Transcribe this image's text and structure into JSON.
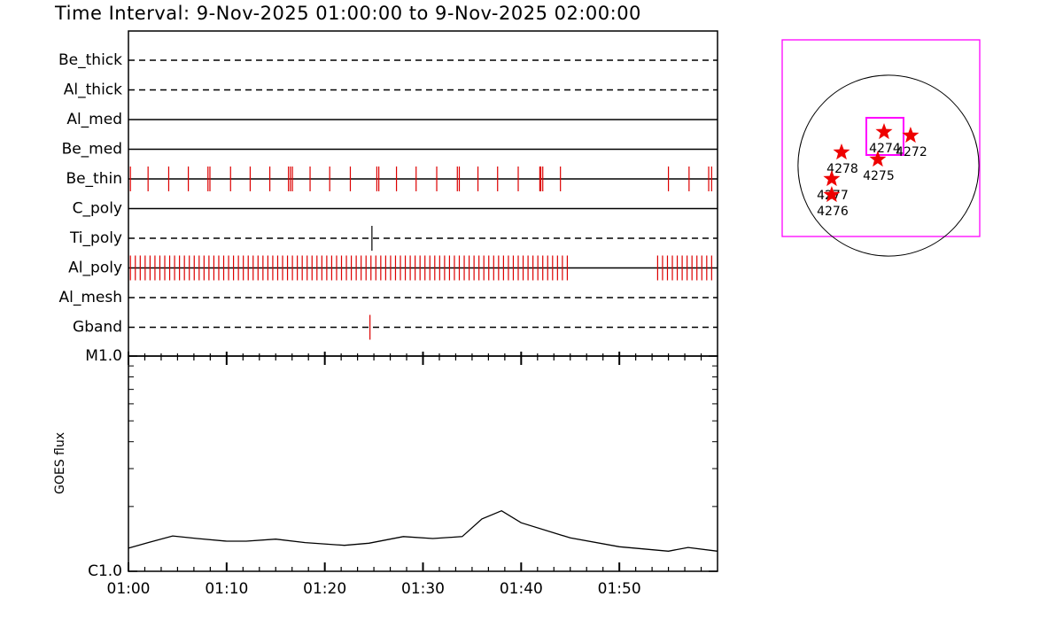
{
  "chart_data": [
    {
      "type": "timeline",
      "title": "Time Interval:  9-Nov-2025 01:00:00 to  9-Nov-2025 02:00:00",
      "xlim": [
        0,
        60
      ],
      "rows": [
        {
          "name": "Be_thick",
          "line": "dashed",
          "color": "#dd0000",
          "times": []
        },
        {
          "name": "Al_thick",
          "line": "dashed",
          "color": "#dd0000",
          "times": []
        },
        {
          "name": "Al_med",
          "line": "solid",
          "color": "#dd0000",
          "times": []
        },
        {
          "name": "Be_med",
          "line": "solid",
          "color": "#dd0000",
          "times": []
        },
        {
          "name": "Be_thin",
          "line": "solid",
          "color": "#dd0000",
          "times": [
            0.2,
            2.0,
            4.1,
            6.1,
            8.1,
            8.3,
            10.4,
            12.4,
            14.4,
            16.3,
            16.5,
            16.7,
            18.5,
            20.5,
            22.6,
            25.3,
            25.5,
            27.3,
            29.3,
            31.4,
            33.5,
            33.7,
            35.6,
            37.6,
            39.7,
            41.9,
            42.0,
            42.2,
            44.0,
            55.0,
            57.1,
            59.1,
            59.4
          ]
        },
        {
          "name": "C_poly",
          "line": "solid",
          "color": "#dd0000",
          "times": []
        },
        {
          "name": "Ti_poly",
          "line": "dashed",
          "color": "#000000",
          "times": [
            24.8
          ]
        },
        {
          "name": "Al_poly",
          "line": "solid",
          "color": "#dd0000",
          "times": [
            0.2,
            0.7,
            1.2,
            1.7,
            2.2,
            2.7,
            3.2,
            3.7,
            4.2,
            4.7,
            5.2,
            5.7,
            6.2,
            6.7,
            7.2,
            7.7,
            8.2,
            8.7,
            9.2,
            9.7,
            10.2,
            10.7,
            11.2,
            11.7,
            12.2,
            12.7,
            13.2,
            13.7,
            14.2,
            14.7,
            15.2,
            15.7,
            16.2,
            16.7,
            17.2,
            17.7,
            18.2,
            18.7,
            19.2,
            19.7,
            20.2,
            20.7,
            21.2,
            21.7,
            22.2,
            22.7,
            23.2,
            23.7,
            24.2,
            24.7,
            25.2,
            25.7,
            26.2,
            26.7,
            27.2,
            27.7,
            28.2,
            28.7,
            29.2,
            29.7,
            30.2,
            30.7,
            31.2,
            31.7,
            32.2,
            32.7,
            33.2,
            33.7,
            34.2,
            34.7,
            35.2,
            35.7,
            36.2,
            36.7,
            37.2,
            37.7,
            38.2,
            38.7,
            39.2,
            39.7,
            40.2,
            40.7,
            41.2,
            41.7,
            42.2,
            42.7,
            43.2,
            43.7,
            44.2,
            44.7,
            53.9,
            54.4,
            54.9,
            55.4,
            55.9,
            56.4,
            56.9,
            57.4,
            57.9,
            58.4,
            58.9,
            59.4
          ]
        },
        {
          "name": "Al_mesh",
          "line": "dashed",
          "color": "#dd0000",
          "times": []
        },
        {
          "name": "Gband",
          "line": "dashed",
          "color": "#dd0000",
          "times": [
            24.6
          ]
        }
      ]
    },
    {
      "type": "line",
      "ylabel": "GOES flux",
      "log_y": true,
      "color": "#000000",
      "xlim": [
        0,
        60
      ],
      "xticks": [
        {
          "value": 0,
          "label": "01:00"
        },
        {
          "value": 10,
          "label": "01:10"
        },
        {
          "value": 20,
          "label": "01:20"
        },
        {
          "value": 30,
          "label": "01:30"
        },
        {
          "value": 40,
          "label": "01:40"
        },
        {
          "value": 50,
          "label": "01:50"
        }
      ],
      "ylim": [
        1e-06,
        1e-05
      ],
      "yticks": [
        {
          "value": 1e-06,
          "label": "C1.0"
        },
        {
          "value": 1e-05,
          "label": "M1.0"
        }
      ],
      "yminor": [
        2e-06,
        3e-06,
        4e-06,
        5e-06,
        6e-06,
        7e-06,
        8e-06,
        9e-06
      ],
      "x": [
        0,
        2,
        4.5,
        7,
        10,
        12,
        15,
        18,
        22,
        24.5,
        28,
        31,
        34,
        36,
        38,
        40,
        45,
        50,
        55,
        57,
        60
      ],
      "values": [
        1.28e-06,
        1.36e-06,
        1.46e-06,
        1.42e-06,
        1.38e-06,
        1.38e-06,
        1.41e-06,
        1.36e-06,
        1.32e-06,
        1.35e-06,
        1.45e-06,
        1.42e-06,
        1.45e-06,
        1.75e-06,
        1.91e-06,
        1.68e-06,
        1.43e-06,
        1.3e-06,
        1.24e-06,
        1.29e-06,
        1.24e-06
      ]
    },
    {
      "type": "map",
      "xlim": [
        -1128,
        969
      ],
      "ylim": [
        -752,
        1335
      ],
      "disk_radius": 960,
      "box_color": "#ff00ff",
      "star_color": "#ee0000",
      "boxes": [
        [
          -235,
          160,
          113,
          508
        ]
      ],
      "points": [
        {
          "label": "4274",
          "x": -47,
          "y": 357
        },
        {
          "label": "4272",
          "x": 235,
          "y": 320
        },
        {
          "label": "4278",
          "x": -498,
          "y": 141
        },
        {
          "label": "4275",
          "x": -113,
          "y": 66
        },
        {
          "label": "4277",
          "x": -602,
          "y": -141
        },
        {
          "label": "4276",
          "x": -602,
          "y": -310
        }
      ]
    }
  ]
}
